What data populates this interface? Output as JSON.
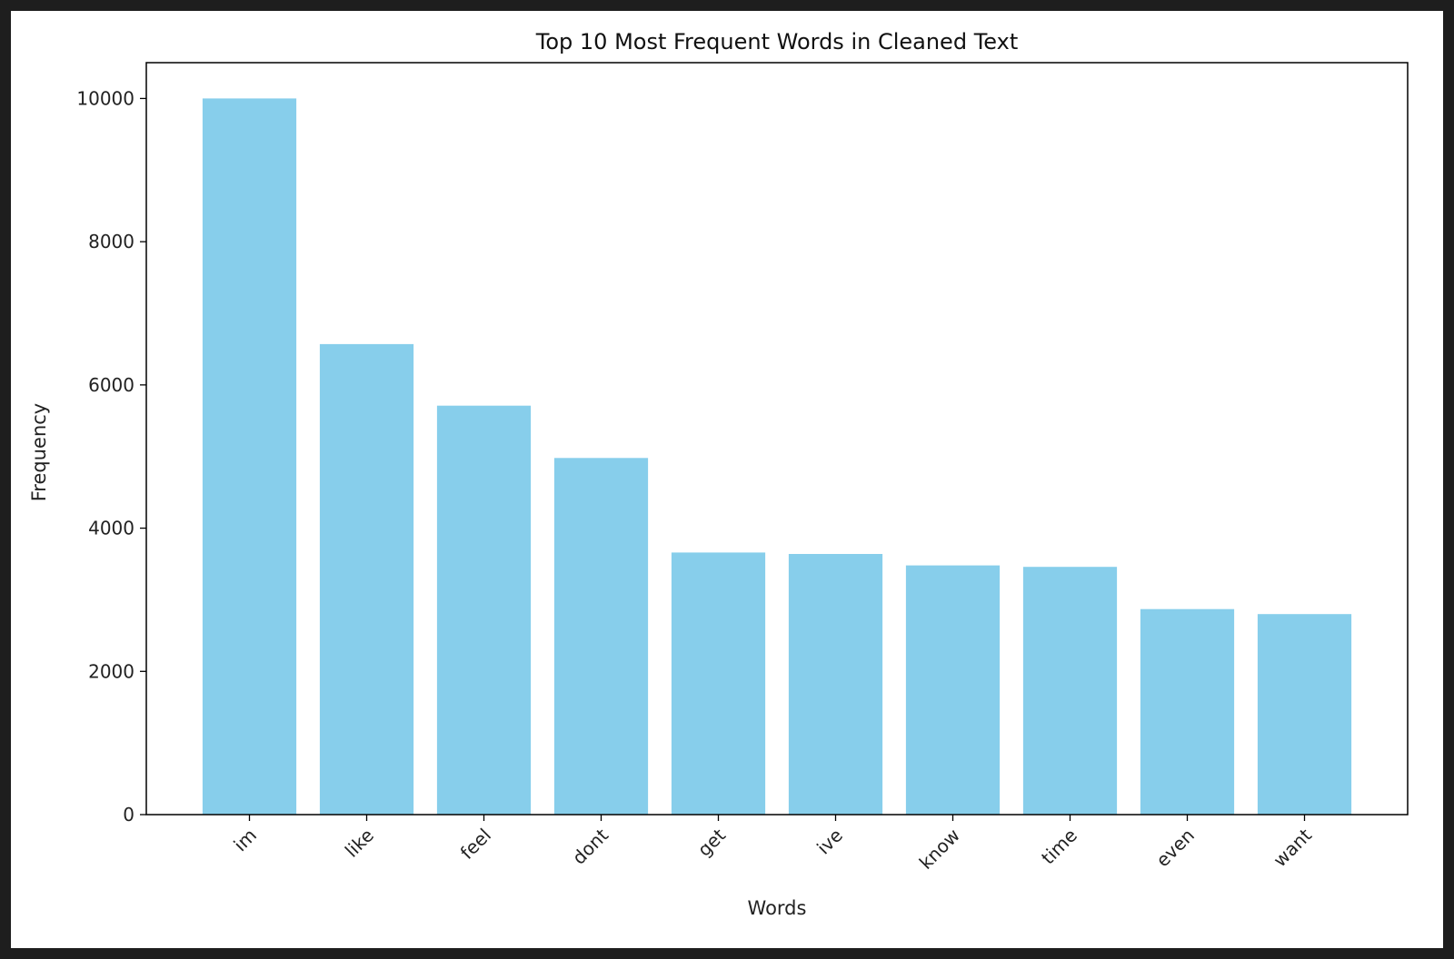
{
  "chart_data": {
    "type": "bar",
    "title": "Top 10 Most Frequent Words in Cleaned Text",
    "xlabel": "Words",
    "ylabel": "Frequency",
    "categories": [
      "im",
      "like",
      "feel",
      "dont",
      "get",
      "ive",
      "know",
      "time",
      "even",
      "want"
    ],
    "values": [
      10000,
      6570,
      5710,
      4980,
      3660,
      3640,
      3480,
      3460,
      2870,
      2800
    ],
    "ylim": [
      0,
      10500
    ],
    "yticks": [
      0,
      2000,
      4000,
      6000,
      8000,
      10000
    ],
    "bar_color": "#87CEEB",
    "grid": false,
    "xtick_rotation": 45
  },
  "colors": {
    "page_background": "#1e1e1e",
    "figure_background": "#ffffff",
    "axis_color": "#000000"
  }
}
